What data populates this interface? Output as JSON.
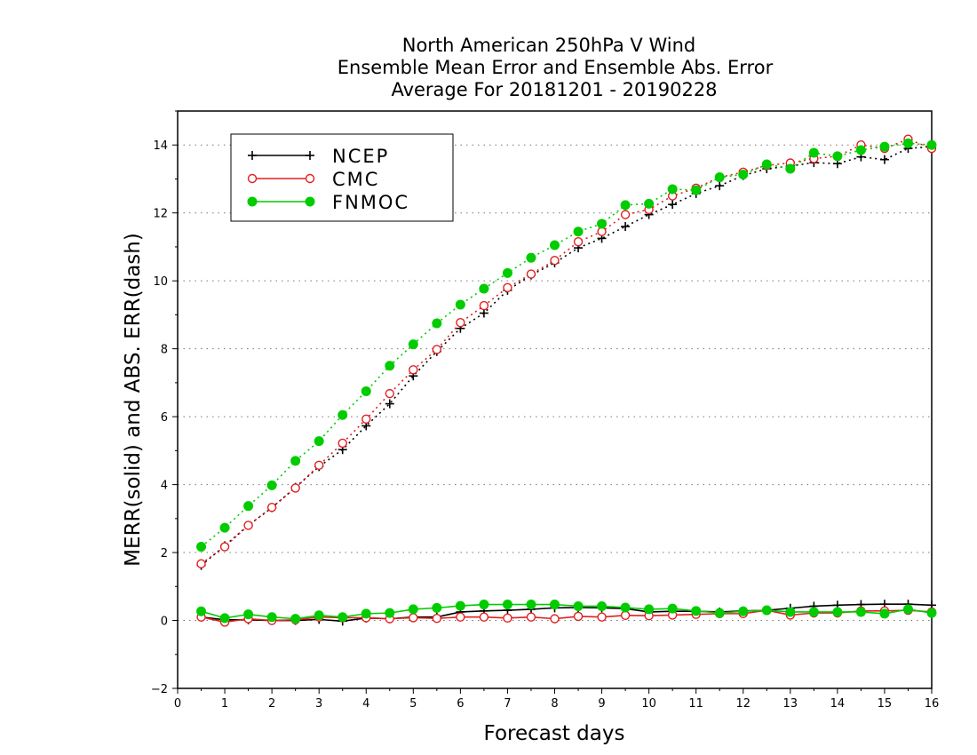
{
  "chart_data": {
    "type": "line",
    "title_lines": [
      "North American 250hPa V Wind",
      "Ensemble Mean Error and Ensemble Abs. Error",
      "Average For 20181201 - 20190228"
    ],
    "xlabel": "Forecast days",
    "ylabel": "MERR(solid) and ABS. ERR(dash)",
    "xlim": [
      0,
      16
    ],
    "ylim": [
      -2,
      15
    ],
    "x_ticks": [
      "0",
      "1",
      "2",
      "3",
      "4",
      "5",
      "6",
      "7",
      "8",
      "9",
      "10",
      "11",
      "12",
      "13",
      "14",
      "15",
      "16"
    ],
    "y_ticks": [
      "−2",
      "0",
      "2",
      "4",
      "6",
      "8",
      "10",
      "12",
      "14"
    ],
    "y_tick_values": [
      -2,
      0,
      2,
      4,
      6,
      8,
      10,
      12,
      14
    ],
    "grid": "horizontal dotted at y ticks",
    "legend_position": "top-left",
    "x": [
      0.5,
      1,
      1.5,
      2,
      2.5,
      3,
      3.5,
      4,
      4.5,
      5,
      5.5,
      6,
      6.5,
      7,
      7.5,
      8,
      8.5,
      9,
      9.5,
      10,
      10.5,
      11,
      11.5,
      12,
      12.5,
      13,
      13.5,
      14,
      14.5,
      15,
      15.5,
      16
    ],
    "series": [
      {
        "name": "NCEP",
        "color": "#000000",
        "marker": "plus",
        "abs_err": [
          1.62,
          2.2,
          2.8,
          3.32,
          3.92,
          4.53,
          5.03,
          5.73,
          6.38,
          7.2,
          7.92,
          8.6,
          9.05,
          9.72,
          10.17,
          10.53,
          10.97,
          11.25,
          11.6,
          11.95,
          12.25,
          12.57,
          12.8,
          13.1,
          13.3,
          13.38,
          13.48,
          13.45,
          13.65,
          13.57,
          13.9,
          13.95
        ],
        "mean_err": [
          0.1,
          0.02,
          0.02,
          0.0,
          0.0,
          0.03,
          -0.02,
          0.07,
          0.05,
          0.1,
          0.1,
          0.25,
          0.28,
          0.3,
          0.33,
          0.37,
          0.38,
          0.37,
          0.35,
          0.25,
          0.27,
          0.27,
          0.25,
          0.28,
          0.3,
          0.36,
          0.42,
          0.45,
          0.47,
          0.48,
          0.48,
          0.45
        ]
      },
      {
        "name": "CMC",
        "color": "#e02020",
        "marker": "open-circle",
        "abs_err": [
          1.67,
          2.17,
          2.8,
          3.33,
          3.9,
          4.57,
          5.22,
          5.93,
          6.68,
          7.38,
          7.98,
          8.77,
          9.27,
          9.8,
          10.2,
          10.6,
          11.15,
          11.45,
          11.95,
          12.1,
          12.5,
          12.73,
          13.05,
          13.2,
          13.4,
          13.47,
          13.6,
          13.67,
          14.0,
          13.9,
          14.17,
          13.9
        ],
        "mean_err": [
          0.1,
          -0.05,
          0.05,
          0.0,
          0.02,
          0.1,
          0.08,
          0.08,
          0.05,
          0.08,
          0.06,
          0.1,
          0.1,
          0.07,
          0.1,
          0.05,
          0.12,
          0.1,
          0.15,
          0.14,
          0.16,
          0.18,
          0.2,
          0.2,
          0.3,
          0.16,
          0.22,
          0.22,
          0.28,
          0.28,
          0.3,
          0.25
        ]
      },
      {
        "name": "FNMOC",
        "color": "#00cc00",
        "marker": "filled-circle",
        "abs_err": [
          2.17,
          2.73,
          3.37,
          3.98,
          4.7,
          5.28,
          6.05,
          6.75,
          7.5,
          8.13,
          8.75,
          9.3,
          9.77,
          10.23,
          10.68,
          11.05,
          11.45,
          11.68,
          12.23,
          12.27,
          12.7,
          12.67,
          13.05,
          13.13,
          13.43,
          13.3,
          13.77,
          13.67,
          13.85,
          13.95,
          14.05,
          14.0
        ],
        "mean_err": [
          0.27,
          0.07,
          0.18,
          0.1,
          0.05,
          0.15,
          0.1,
          0.2,
          0.22,
          0.33,
          0.37,
          0.43,
          0.47,
          0.47,
          0.47,
          0.47,
          0.42,
          0.42,
          0.38,
          0.33,
          0.35,
          0.28,
          0.22,
          0.27,
          0.3,
          0.25,
          0.25,
          0.25,
          0.25,
          0.2,
          0.33,
          0.22
        ]
      }
    ]
  }
}
